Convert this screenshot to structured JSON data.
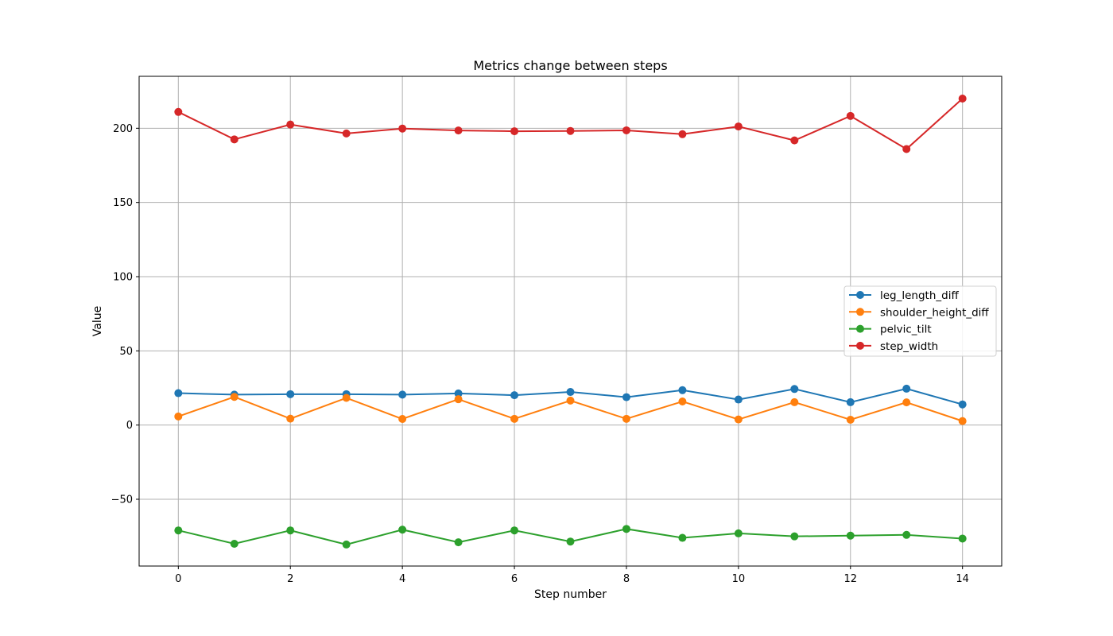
{
  "chart_data": {
    "type": "line",
    "title": "Metrics change between steps",
    "xlabel": "Step number",
    "ylabel": "Value",
    "x": [
      0,
      1,
      2,
      3,
      4,
      5,
      6,
      7,
      8,
      9,
      10,
      11,
      12,
      13,
      14
    ],
    "xlim": [
      -0.7,
      14.7
    ],
    "ylim": [
      -95,
      235
    ],
    "xticks": [
      0,
      2,
      4,
      6,
      8,
      10,
      12,
      14
    ],
    "yticks": [
      -50,
      0,
      50,
      100,
      150,
      200
    ],
    "ytick_labels": [
      "−50",
      "0",
      "50",
      "100",
      "150",
      "200"
    ],
    "grid": true,
    "legend_position": "center-right",
    "series": [
      {
        "name": "leg_length_diff",
        "color": "#1f77b4",
        "values": [
          21.5,
          20.5,
          20.8,
          20.8,
          20.5,
          21.3,
          20.1,
          22.3,
          18.8,
          23.5,
          17.2,
          24.3,
          15.4,
          24.5,
          13.9
        ]
      },
      {
        "name": "shoulder_height_diff",
        "color": "#ff7f0e",
        "values": [
          5.8,
          19.0,
          4.3,
          18.3,
          4.1,
          17.4,
          4.2,
          16.5,
          4.2,
          15.9,
          3.8,
          15.4,
          3.6,
          15.3,
          2.7
        ]
      },
      {
        "name": "pelvic_tilt",
        "color": "#2ca02c",
        "values": [
          -71,
          -80,
          -71,
          -80.5,
          -70.5,
          -79,
          -71,
          -78.5,
          -70,
          -76,
          -73,
          -75,
          -74.5,
          -74,
          -76.5
        ]
      },
      {
        "name": "step_width",
        "color": "#d62728",
        "values": [
          211,
          192.5,
          202.5,
          196.5,
          199.8,
          198.5,
          198,
          198.2,
          198.6,
          196,
          201.2,
          191.8,
          208.3,
          186,
          220
        ]
      }
    ]
  }
}
